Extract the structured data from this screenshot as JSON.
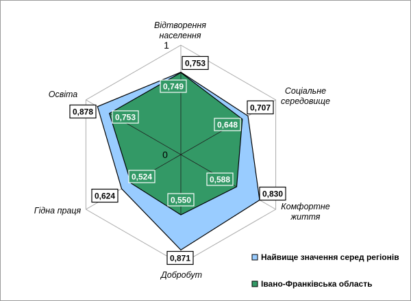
{
  "chart_data": {
    "type": "radar",
    "axes": [
      "Відтворення населення",
      "Соціальне середовище",
      "Комфортне життя",
      "Добробут",
      "Гідна праця",
      "Освіта"
    ],
    "axis_label_lines": [
      [
        "Відтворення",
        "населення"
      ],
      [
        "Соціальне",
        "середовище"
      ],
      [
        "Комфортне",
        "життя"
      ],
      [
        "Добробут"
      ],
      [
        "Гідна праця"
      ],
      [
        "Освіта"
      ]
    ],
    "rlim": [
      0,
      1
    ],
    "tick_labels": [
      "0",
      "1"
    ],
    "series": [
      {
        "name": "Найвище значення серед регіонів",
        "values": [
          0.753,
          0.707,
          0.83,
          0.871,
          0.624,
          0.878
        ],
        "value_labels": [
          "0,753",
          "0,707",
          "0,830",
          "0,871",
          "0,624",
          "0,878"
        ],
        "color": "#99ccff"
      },
      {
        "name": "Івано-Франківська область",
        "values": [
          0.749,
          0.648,
          0.588,
          0.55,
          0.524,
          0.753
        ],
        "value_labels": [
          "0,749",
          "0,648",
          "0,588",
          "0,550",
          "0,524",
          "0,753"
        ],
        "color": "#339966"
      }
    ],
    "legend": "bottom-right",
    "grid": true
  },
  "colors": {
    "grid": "#aaaaaa",
    "outline": "#000000",
    "frame": "#9a9a9a"
  }
}
